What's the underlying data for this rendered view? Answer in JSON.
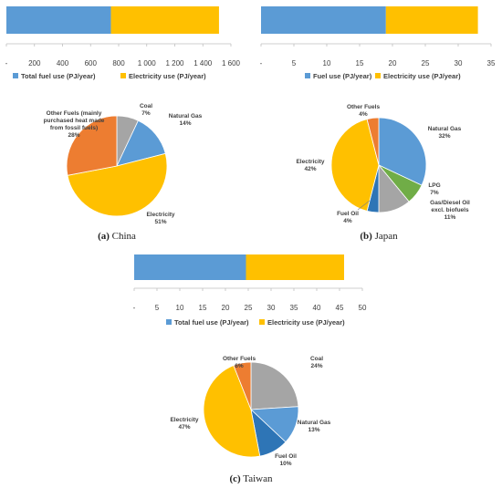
{
  "colors": {
    "blue": "#5b9bd5",
    "gold": "#ffc000",
    "orange": "#ed7d31",
    "gray": "#a5a5a5",
    "green": "#70ad47",
    "darkblue": "#2e75b6",
    "axis": "#bfbfbf",
    "text": "#404040"
  },
  "chart_data": [
    {
      "type": "bar",
      "id": "china-bar",
      "categories": [
        ""
      ],
      "series": [
        {
          "name": "Total fuel use (PJ/year)",
          "values": [
            745
          ],
          "color": "blue"
        },
        {
          "name": "Electricity use (PJ/year)",
          "values": [
            770
          ],
          "color": "gold"
        }
      ],
      "stacked": true,
      "orientation": "horizontal",
      "xlim": [
        0,
        1600
      ],
      "ticks": [
        "-",
        "200",
        "400",
        "600",
        "800",
        "1 000",
        "1 200",
        "1 400",
        "1 600"
      ],
      "tick_values": [
        0,
        200,
        400,
        600,
        800,
        1000,
        1200,
        1400,
        1600
      ],
      "legend_position": "bottom"
    },
    {
      "type": "bar",
      "id": "japan-bar",
      "categories": [
        ""
      ],
      "series": [
        {
          "name": "Fuel use (PJ/year)",
          "values": [
            19
          ],
          "color": "blue"
        },
        {
          "name": "Electricity use (PJ/year)",
          "values": [
            14
          ],
          "color": "gold"
        }
      ],
      "stacked": true,
      "orientation": "horizontal",
      "xlim": [
        0,
        35
      ],
      "ticks": [
        "-",
        "5",
        "10",
        "15",
        "20",
        "25",
        "30",
        "35"
      ],
      "tick_values": [
        0,
        5,
        10,
        15,
        20,
        25,
        30,
        35
      ],
      "legend_position": "bottom"
    },
    {
      "type": "bar",
      "id": "taiwan-bar",
      "categories": [
        ""
      ],
      "series": [
        {
          "name": "Total fuel use (PJ/year)",
          "values": [
            24.5
          ],
          "color": "blue"
        },
        {
          "name": "Electricity use (PJ/year)",
          "values": [
            21.5
          ],
          "color": "gold"
        }
      ],
      "stacked": true,
      "orientation": "horizontal",
      "xlim": [
        0,
        50
      ],
      "ticks": [
        "-",
        "5",
        "10",
        "15",
        "20",
        "25",
        "30",
        "35",
        "40",
        "45",
        "50"
      ],
      "tick_values": [
        0,
        5,
        10,
        15,
        20,
        25,
        30,
        35,
        40,
        45,
        50
      ],
      "legend_position": "bottom"
    },
    {
      "type": "pie",
      "id": "china-pie",
      "caption_label": "(a)",
      "caption_name": "China",
      "slices": [
        {
          "label": [
            "Coal",
            "7%"
          ],
          "value": 7,
          "color": "gray"
        },
        {
          "label": [
            "Natural Gas",
            "14%"
          ],
          "value": 14,
          "color": "blue"
        },
        {
          "label": [
            "Electricity",
            "51%"
          ],
          "value": 51,
          "color": "gold"
        },
        {
          "label": [
            "Other Fuels (mainly",
            "purchased heat made",
            "from fossil fuels)",
            "28%"
          ],
          "value": 28,
          "color": "orange"
        }
      ]
    },
    {
      "type": "pie",
      "id": "japan-pie",
      "caption_label": "(b)",
      "caption_name": "Japan",
      "slices": [
        {
          "label": [
            "Natural Gas",
            "32%"
          ],
          "value": 32,
          "color": "blue"
        },
        {
          "label": [
            "LPG",
            "7%"
          ],
          "value": 7,
          "color": "green"
        },
        {
          "label": [
            "Gas/Diesel Oil",
            "excl. biofuels",
            "11%"
          ],
          "value": 11,
          "color": "gray"
        },
        {
          "label": [
            "Fuel Oil",
            "4%"
          ],
          "value": 4,
          "color": "darkblue"
        },
        {
          "label": [
            "Electricity",
            "42%"
          ],
          "value": 42,
          "color": "gold"
        },
        {
          "label": [
            "Other Fuels",
            "4%"
          ],
          "value": 4,
          "color": "orange"
        }
      ]
    },
    {
      "type": "pie",
      "id": "taiwan-pie",
      "caption_label": "(c)",
      "caption_name": "Taiwan",
      "slices": [
        {
          "label": [
            "Coal",
            "24%"
          ],
          "value": 24,
          "color": "gray"
        },
        {
          "label": [
            "Natural Gas",
            "13%"
          ],
          "value": 13,
          "color": "blue"
        },
        {
          "label": [
            "Fuel Oil",
            "10%"
          ],
          "value": 10,
          "color": "darkblue"
        },
        {
          "label": [
            "Electricity",
            "47%"
          ],
          "value": 47,
          "color": "gold"
        },
        {
          "label": [
            "Other Fuels",
            "6%"
          ],
          "value": 6,
          "color": "orange"
        }
      ]
    }
  ]
}
